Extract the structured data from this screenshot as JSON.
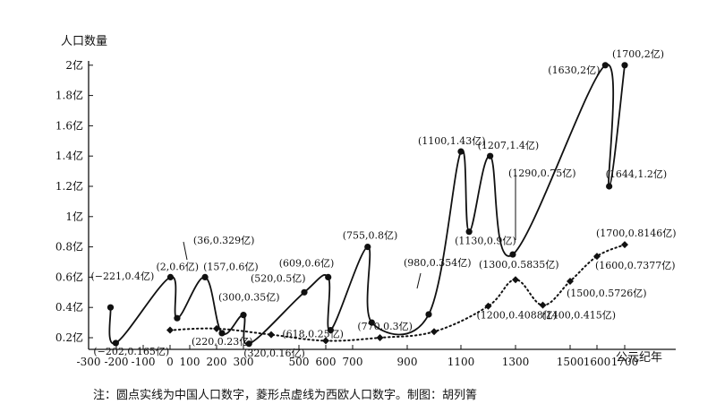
{
  "chart_data": {
    "type": "line",
    "ylabel": "人口数量",
    "xlabel": "公元纪年",
    "x_ticks": [
      "-300",
      "-200",
      "-100",
      "0",
      "100",
      "200",
      "300",
      "500",
      "600",
      "700",
      "900",
      "1100",
      "1300",
      "1500",
      "1600",
      "1700"
    ],
    "y_ticks": [
      "0.2亿",
      "0.4亿",
      "0.6亿",
      "0.8亿",
      "1亿",
      "1.2亿",
      "1.4亿",
      "1.6亿",
      "1.8亿",
      "2亿"
    ],
    "xlim": [
      -300,
      1750
    ],
    "ylim": [
      0.1,
      2.05
    ],
    "note": "注：圆点实线为中国人口数字，菱形点虚线为西欧人口数字。制图：胡列箐",
    "series": [
      {
        "marker": "circle",
        "line": "solid",
        "color": "#111111",
        "points": [
          {
            "x": -221,
            "y": 0.4,
            "label": "(−221,0.4亿)"
          },
          {
            "x": -202,
            "y": 0.165,
            "label": "(−202,0.165亿)"
          },
          {
            "x": 2,
            "y": 0.6,
            "label": "(2,0.6亿)"
          },
          {
            "x": 36,
            "y": 0.329,
            "label": "(36,0.329亿)"
          },
          {
            "x": 157,
            "y": 0.6,
            "label": "(157,0.6亿)"
          },
          {
            "x": 220,
            "y": 0.23,
            "label": "(220,0.23亿)"
          },
          {
            "x": 300,
            "y": 0.35,
            "label": "(300,0.35亿)"
          },
          {
            "x": 320,
            "y": 0.16,
            "label": "(320,0.16亿)"
          },
          {
            "x": 520,
            "y": 0.5,
            "label": "(520,0.5亿)"
          },
          {
            "x": 609,
            "y": 0.6,
            "label": "(609,0.6亿)"
          },
          {
            "x": 618,
            "y": 0.25,
            "label": "(618,0.25亿)"
          },
          {
            "x": 755,
            "y": 0.8,
            "label": "(755,0.8亿)"
          },
          {
            "x": 770,
            "y": 0.3,
            "label": "(770,0.3亿)"
          },
          {
            "x": 980,
            "y": 0.354,
            "label": "(980,0.354亿)"
          },
          {
            "x": 1100,
            "y": 1.43,
            "label": "(1100,1.43亿)"
          },
          {
            "x": 1130,
            "y": 0.9,
            "label": "(1130,0.9亿)"
          },
          {
            "x": 1207,
            "y": 1.4,
            "label": "(1207,1.4亿)"
          },
          {
            "x": 1290,
            "y": 0.75,
            "label": "(1290,0.75亿)"
          },
          {
            "x": 1630,
            "y": 2,
            "label": "(1630,2亿)"
          },
          {
            "x": 1644,
            "y": 1.2,
            "label": "(1644,1.2亿)"
          },
          {
            "x": 1700,
            "y": 2,
            "label": "(1700,2亿)"
          }
        ]
      },
      {
        "marker": "diamond",
        "line": "dotted",
        "color": "#111111",
        "points": [
          {
            "x": 0,
            "y": 0.25,
            "label": ""
          },
          {
            "x": 200,
            "y": 0.26,
            "label": ""
          },
          {
            "x": 400,
            "y": 0.22,
            "label": ""
          },
          {
            "x": 600,
            "y": 0.18,
            "label": ""
          },
          {
            "x": 800,
            "y": 0.2,
            "label": ""
          },
          {
            "x": 1000,
            "y": 0.24,
            "label": ""
          },
          {
            "x": 1200,
            "y": 0.4088,
            "label": "(1200,0.4088亿)"
          },
          {
            "x": 1300,
            "y": 0.5835,
            "label": "(1300,0.5835亿)"
          },
          {
            "x": 1400,
            "y": 0.415,
            "label": "(1400,0.415亿)"
          },
          {
            "x": 1500,
            "y": 0.5726,
            "label": "(1500,0.5726亿)"
          },
          {
            "x": 1600,
            "y": 0.7377,
            "label": "(1600,0.7377亿)"
          },
          {
            "x": 1700,
            "y": 0.8146,
            "label": "(1700,0.8146亿)"
          }
        ]
      }
    ],
    "grid": false,
    "legend": "none"
  }
}
